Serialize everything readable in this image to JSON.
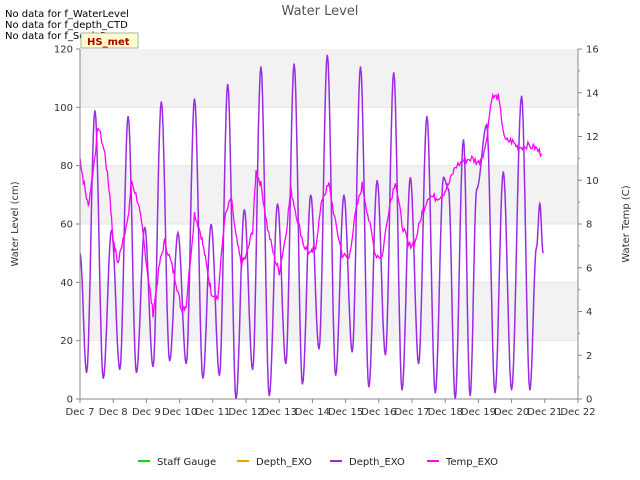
{
  "no_data_notes": [
    "No data for f_WaterLevel",
    "No data for f_depth_CTD",
    "No data for f_SonicRng"
  ],
  "station_badge": "HS_met",
  "chart_data": {
    "type": "line",
    "title": "Water Level",
    "ylabel": "Water Level (cm)",
    "y2label": "Water Temp (C)",
    "x_ticks": [
      "Dec 7",
      "Dec 8",
      "Dec 9",
      "Dec 10",
      "Dec 11",
      "Dec 12",
      "Dec 13",
      "Dec 14",
      "Dec 15",
      "Dec 16",
      "Dec 17",
      "Dec 18",
      "Dec 19",
      "Dec 20",
      "Dec 21",
      "Dec 22"
    ],
    "xlim": [
      7,
      22
    ],
    "ylim": [
      0,
      120
    ],
    "y_ticks": [
      0,
      20,
      40,
      60,
      80,
      100,
      120
    ],
    "y2lim": [
      0,
      16
    ],
    "y2_ticks": [
      0,
      2,
      4,
      6,
      8,
      10,
      12,
      14,
      16
    ],
    "grid": "horizontal bands",
    "legend_position": "bottom",
    "legend": [
      {
        "name": "Staff Gauge",
        "color": "#00dd00"
      },
      {
        "name": "Depth_EXO",
        "color": "#ff9900"
      },
      {
        "name": "Depth_EXO",
        "color": "#9a2be2"
      },
      {
        "name": "Temp_EXO",
        "color": "#ff00ff"
      }
    ],
    "depth_extrema": [
      [
        7.0,
        50
      ],
      [
        7.2,
        9
      ],
      [
        7.45,
        99
      ],
      [
        7.7,
        7
      ],
      [
        7.95,
        58
      ],
      [
        8.2,
        10
      ],
      [
        8.45,
        97
      ],
      [
        8.7,
        9
      ],
      [
        8.95,
        59
      ],
      [
        9.2,
        11
      ],
      [
        9.45,
        102
      ],
      [
        9.7,
        13
      ],
      [
        9.95,
        57
      ],
      [
        10.2,
        12
      ],
      [
        10.45,
        103
      ],
      [
        10.7,
        7
      ],
      [
        10.95,
        60
      ],
      [
        11.2,
        8
      ],
      [
        11.45,
        108
      ],
      [
        11.7,
        0
      ],
      [
        11.95,
        65
      ],
      [
        12.2,
        10
      ],
      [
        12.45,
        114
      ],
      [
        12.7,
        1
      ],
      [
        12.95,
        67
      ],
      [
        13.2,
        12
      ],
      [
        13.45,
        115
      ],
      [
        13.7,
        5
      ],
      [
        13.95,
        70
      ],
      [
        14.2,
        17
      ],
      [
        14.45,
        118
      ],
      [
        14.7,
        8
      ],
      [
        14.95,
        70
      ],
      [
        15.2,
        16
      ],
      [
        15.45,
        114
      ],
      [
        15.7,
        4
      ],
      [
        15.95,
        75
      ],
      [
        16.2,
        15
      ],
      [
        16.45,
        112
      ],
      [
        16.7,
        3
      ],
      [
        16.95,
        76
      ],
      [
        17.2,
        12
      ],
      [
        17.45,
        97
      ],
      [
        17.7,
        2
      ],
      [
        17.95,
        76
      ],
      [
        18.1,
        72
      ],
      [
        18.3,
        0
      ],
      [
        18.55,
        89
      ],
      [
        18.75,
        1
      ],
      [
        18.95,
        72
      ],
      [
        19.25,
        94
      ],
      [
        19.5,
        2
      ],
      [
        19.75,
        78
      ],
      [
        20.0,
        3
      ],
      [
        20.3,
        104
      ],
      [
        20.55,
        3
      ],
      [
        20.75,
        52
      ],
      [
        20.85,
        67
      ],
      [
        20.95,
        50
      ]
    ],
    "temp_series": [
      [
        7.0,
        11.0
      ],
      [
        7.1,
        10.0
      ],
      [
        7.25,
        8.8
      ],
      [
        7.4,
        10.5
      ],
      [
        7.55,
        12.5
      ],
      [
        7.75,
        11.2
      ],
      [
        7.9,
        9.3
      ],
      [
        8.0,
        7.2
      ],
      [
        8.15,
        6.2
      ],
      [
        8.3,
        7.4
      ],
      [
        8.45,
        8.2
      ],
      [
        8.55,
        10.0
      ],
      [
        8.75,
        9.0
      ],
      [
        8.9,
        7.5
      ],
      [
        9.05,
        5.6
      ],
      [
        9.2,
        3.9
      ],
      [
        9.4,
        6.2
      ],
      [
        9.55,
        7.2
      ],
      [
        9.75,
        6.2
      ],
      [
        9.9,
        5.3
      ],
      [
        10.05,
        4.1
      ],
      [
        10.2,
        4.3
      ],
      [
        10.45,
        8.5
      ],
      [
        10.65,
        7.5
      ],
      [
        10.8,
        6.2
      ],
      [
        10.95,
        4.9
      ],
      [
        11.15,
        4.6
      ],
      [
        11.35,
        8.2
      ],
      [
        11.55,
        9.2
      ],
      [
        11.7,
        7.4
      ],
      [
        11.85,
        6.2
      ],
      [
        12.0,
        6.5
      ],
      [
        12.2,
        7.7
      ],
      [
        12.3,
        10.4
      ],
      [
        12.45,
        9.8
      ],
      [
        12.65,
        7.8
      ],
      [
        12.85,
        6.5
      ],
      [
        13.0,
        5.8
      ],
      [
        13.2,
        7.5
      ],
      [
        13.35,
        9.6
      ],
      [
        13.55,
        8.2
      ],
      [
        13.75,
        7.0
      ],
      [
        13.95,
        6.6
      ],
      [
        14.1,
        7.0
      ],
      [
        14.3,
        9.2
      ],
      [
        14.5,
        9.8
      ],
      [
        14.7,
        8.0
      ],
      [
        14.9,
        6.6
      ],
      [
        15.1,
        6.4
      ],
      [
        15.3,
        8.5
      ],
      [
        15.5,
        9.8
      ],
      [
        15.7,
        8.2
      ],
      [
        15.9,
        6.6
      ],
      [
        16.1,
        6.5
      ],
      [
        16.3,
        8.7
      ],
      [
        16.5,
        10.0
      ],
      [
        16.7,
        8.0
      ],
      [
        16.9,
        7.0
      ],
      [
        17.1,
        7.2
      ],
      [
        17.3,
        8.5
      ],
      [
        17.5,
        9.3
      ],
      [
        17.7,
        9.2
      ],
      [
        17.9,
        9.3
      ],
      [
        18.1,
        9.8
      ],
      [
        18.3,
        10.6
      ],
      [
        18.55,
        10.9
      ],
      [
        18.8,
        11.0
      ],
      [
        19.0,
        10.8
      ],
      [
        19.2,
        11.4
      ],
      [
        19.4,
        13.8
      ],
      [
        19.6,
        13.8
      ],
      [
        19.8,
        11.8
      ],
      [
        20.0,
        11.8
      ],
      [
        20.2,
        11.5
      ],
      [
        20.45,
        11.6
      ],
      [
        20.7,
        11.5
      ],
      [
        20.9,
        11.2
      ]
    ]
  }
}
